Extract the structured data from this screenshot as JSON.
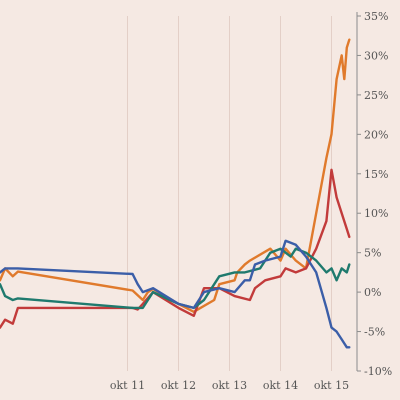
{
  "chart_data": {
    "type": "line",
    "title": "",
    "xlabel": "",
    "ylabel": "",
    "x_tick_labels": [
      "okt 11",
      "okt 12",
      "okt 13",
      "okt 14",
      "okt 15"
    ],
    "x_tick_values": [
      6,
      7,
      8,
      9,
      10
    ],
    "xlim": [
      3.5,
      10.5
    ],
    "ylim": [
      -10,
      35
    ],
    "y_ticks": [
      -10,
      -5,
      0,
      5,
      10,
      15,
      20,
      25,
      30,
      35
    ],
    "y_tick_labels": [
      "-10%",
      "-5%",
      "0%",
      "5%",
      "10%",
      "15%",
      "20%",
      "25%",
      "30%",
      "35%"
    ],
    "y_axis_position": "right",
    "grid": "vertical",
    "legend": "none",
    "series": [
      {
        "color": "#e07a2c",
        "x": [
          3.5,
          3.6,
          3.75,
          3.85,
          6.1,
          6.3,
          6.4,
          6.5,
          7.0,
          7.3,
          7.7,
          7.8,
          8.1,
          8.15,
          8.3,
          8.4,
          8.8,
          9.0,
          9.1,
          9.3,
          9.5,
          9.7,
          9.9,
          10.0,
          10.1,
          10.2,
          10.25,
          10.3,
          10.35
        ],
        "values": [
          1.5,
          3.0,
          2.0,
          2.6,
          0.2,
          -1.0,
          0.0,
          0.4,
          -1.5,
          -2.5,
          -1.0,
          1.0,
          1.5,
          2.5,
          3.5,
          4.0,
          5.5,
          4.0,
          5.5,
          4.0,
          3.0,
          10.0,
          17.0,
          20.0,
          27.0,
          30.0,
          27.0,
          31.0,
          32.0
        ]
      },
      {
        "color": "#c23b3b",
        "x": [
          3.5,
          3.6,
          3.75,
          3.85,
          6.1,
          6.2,
          6.3,
          6.5,
          7.0,
          7.3,
          7.5,
          7.8,
          8.1,
          8.4,
          8.5,
          8.7,
          9.0,
          9.1,
          9.3,
          9.5,
          9.7,
          9.9,
          10.0,
          10.1,
          10.2,
          10.3,
          10.35
        ],
        "values": [
          -4.5,
          -3.5,
          -4.0,
          -2.0,
          -2.0,
          -2.2,
          -1.5,
          0.0,
          -2.0,
          -3.0,
          0.5,
          0.5,
          -0.5,
          -1.0,
          0.5,
          1.5,
          2.0,
          3.0,
          2.5,
          3.0,
          5.5,
          9.0,
          15.5,
          12.0,
          10.0,
          8.0,
          7.0
        ]
      },
      {
        "color": "#1f7a6e",
        "x": [
          3.5,
          3.6,
          3.75,
          3.85,
          6.1,
          6.3,
          6.5,
          7.0,
          7.3,
          7.5,
          7.8,
          8.1,
          8.3,
          8.6,
          8.8,
          9.0,
          9.2,
          9.3,
          9.5,
          9.7,
          9.9,
          10.0,
          10.1,
          10.2,
          10.3,
          10.35
        ],
        "values": [
          1.0,
          -0.5,
          -1.0,
          -0.8,
          -2.0,
          -2.0,
          0.0,
          -1.5,
          -2.0,
          -1.0,
          2.0,
          2.5,
          2.5,
          3.0,
          5.0,
          5.5,
          4.5,
          5.5,
          5.0,
          4.0,
          2.5,
          3.0,
          1.5,
          3.0,
          2.5,
          3.5
        ]
      },
      {
        "color": "#3b5ea8",
        "x": [
          3.5,
          3.6,
          3.75,
          3.85,
          6.1,
          6.2,
          6.3,
          6.5,
          7.0,
          7.3,
          7.5,
          7.8,
          8.1,
          8.3,
          8.4,
          8.5,
          8.7,
          9.0,
          9.1,
          9.3,
          9.5,
          9.7,
          9.9,
          10.0,
          10.1,
          10.2,
          10.3,
          10.35
        ],
        "values": [
          2.5,
          3.0,
          3.0,
          3.0,
          2.3,
          1.0,
          0.0,
          0.5,
          -1.5,
          -2.0,
          0.0,
          0.5,
          0.0,
          1.5,
          1.5,
          3.5,
          4.0,
          4.5,
          6.5,
          6.0,
          4.5,
          2.5,
          -2.0,
          -4.5,
          -5.0,
          -6.0,
          -7.0,
          -7.0
        ]
      }
    ]
  }
}
